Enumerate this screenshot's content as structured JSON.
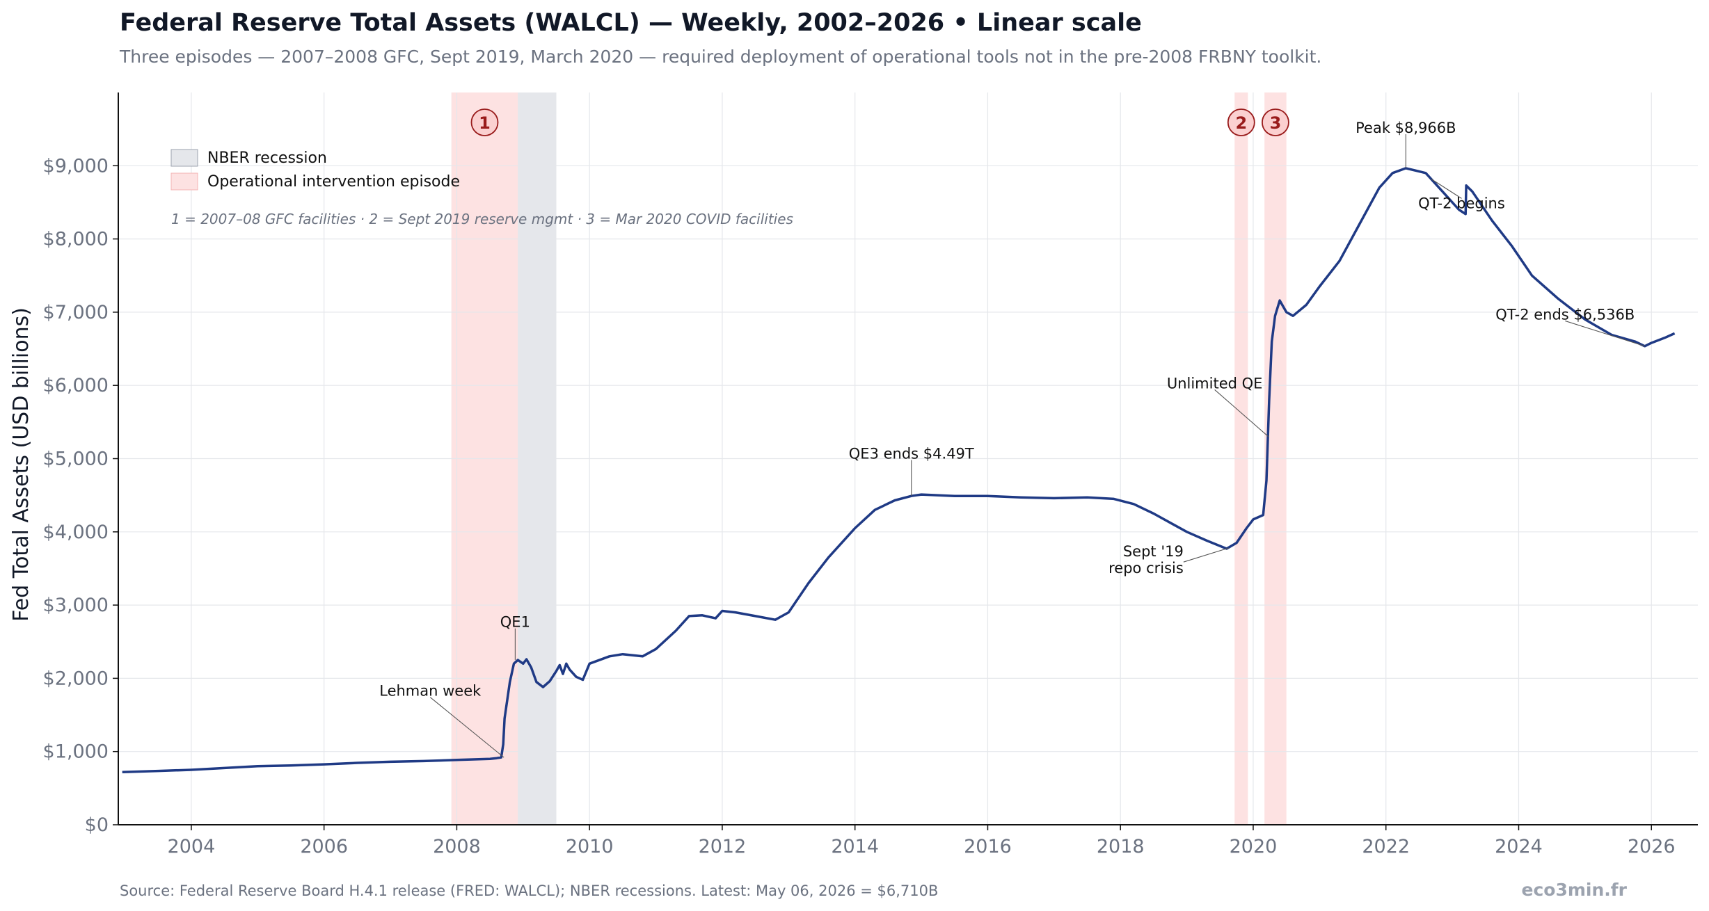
{
  "colors": {
    "line": "#1f3a85",
    "recession": "#e5e7eb",
    "episode": "#fde2e2",
    "badge_stroke": "#991b1b",
    "grid": "#e5e7eb"
  },
  "title": "Federal Reserve Total Assets (WALCL) — Weekly, 2002–2026  •  Linear scale",
  "subtitle": "Three episodes — 2007–2008 GFC, Sept 2019, March 2020 — required deployment of operational tools not in the pre-2008 FRBNY toolkit.",
  "footer": {
    "source": "Source: Federal Reserve Board H.4.1 release (FRED: WALCL); NBER recessions.   Latest: May 06, 2026 = $6,710B",
    "brand": "eco3min.fr"
  },
  "legend": {
    "position": "top-left",
    "items": [
      {
        "label": "NBER recession",
        "kind": "recession"
      },
      {
        "label": "Operational intervention episode",
        "kind": "episode"
      }
    ],
    "note": "1 = 2007–08 GFC facilities · 2 = Sept 2019 reserve mgmt · 3 = Mar 2020 COVID facilities"
  },
  "chart_data": {
    "type": "line",
    "title": "Federal Reserve Total Assets (WALCL) — Weekly, 2002–2026  •  Linear scale",
    "xlabel": "",
    "ylabel": "Fed Total Assets (USD billions)",
    "xlim": [
      2002.9,
      2026.7
    ],
    "ylim": [
      0,
      10000
    ],
    "scale": "linear",
    "grid": true,
    "x_ticks": [
      2004,
      2006,
      2008,
      2010,
      2012,
      2014,
      2016,
      2018,
      2020,
      2022,
      2024,
      2026
    ],
    "x_tick_labels": [
      "2004",
      "2006",
      "2008",
      "2010",
      "2012",
      "2014",
      "2016",
      "2018",
      "2020",
      "2022",
      "2024",
      "2026"
    ],
    "y_ticks": [
      0,
      1000,
      2000,
      3000,
      4000,
      5000,
      6000,
      7000,
      8000,
      9000
    ],
    "y_tick_labels": [
      "$0",
      "$1,000",
      "$2,000",
      "$3,000",
      "$4,000",
      "$5,000",
      "$6,000",
      "$7,000",
      "$8,000",
      "$9,000"
    ],
    "series": [
      {
        "points": [
          [
            2002.96,
            720
          ],
          [
            2003.5,
            735
          ],
          [
            2004.0,
            750
          ],
          [
            2004.5,
            775
          ],
          [
            2005.0,
            800
          ],
          [
            2005.5,
            810
          ],
          [
            2006.0,
            825
          ],
          [
            2006.5,
            845
          ],
          [
            2007.0,
            860
          ],
          [
            2007.5,
            870
          ],
          [
            2008.0,
            885
          ],
          [
            2008.5,
            900
          ],
          [
            2008.6,
            910
          ],
          [
            2008.67,
            920
          ],
          [
            2008.7,
            1100
          ],
          [
            2008.72,
            1450
          ],
          [
            2008.76,
            1700
          ],
          [
            2008.8,
            1950
          ],
          [
            2008.86,
            2200
          ],
          [
            2008.92,
            2250
          ],
          [
            2009.0,
            2200
          ],
          [
            2009.05,
            2260
          ],
          [
            2009.12,
            2150
          ],
          [
            2009.2,
            1950
          ],
          [
            2009.3,
            1880
          ],
          [
            2009.4,
            1960
          ],
          [
            2009.5,
            2100
          ],
          [
            2009.55,
            2180
          ],
          [
            2009.6,
            2060
          ],
          [
            2009.65,
            2200
          ],
          [
            2009.7,
            2120
          ],
          [
            2009.8,
            2020
          ],
          [
            2009.9,
            1980
          ],
          [
            2010.0,
            2200
          ],
          [
            2010.3,
            2300
          ],
          [
            2010.5,
            2330
          ],
          [
            2010.8,
            2300
          ],
          [
            2011.0,
            2400
          ],
          [
            2011.3,
            2650
          ],
          [
            2011.5,
            2850
          ],
          [
            2011.7,
            2860
          ],
          [
            2011.9,
            2820
          ],
          [
            2012.0,
            2920
          ],
          [
            2012.2,
            2900
          ],
          [
            2012.5,
            2850
          ],
          [
            2012.8,
            2800
          ],
          [
            2013.0,
            2900
          ],
          [
            2013.3,
            3300
          ],
          [
            2013.6,
            3650
          ],
          [
            2014.0,
            4050
          ],
          [
            2014.3,
            4300
          ],
          [
            2014.6,
            4430
          ],
          [
            2014.85,
            4490
          ],
          [
            2015.0,
            4510
          ],
          [
            2015.5,
            4490
          ],
          [
            2016.0,
            4490
          ],
          [
            2016.5,
            4470
          ],
          [
            2017.0,
            4460
          ],
          [
            2017.5,
            4470
          ],
          [
            2017.9,
            4450
          ],
          [
            2018.2,
            4380
          ],
          [
            2018.5,
            4250
          ],
          [
            2018.8,
            4100
          ],
          [
            2019.0,
            4000
          ],
          [
            2019.3,
            3880
          ],
          [
            2019.6,
            3770
          ],
          [
            2019.75,
            3850
          ],
          [
            2019.9,
            4050
          ],
          [
            2020.0,
            4170
          ],
          [
            2020.15,
            4230
          ],
          [
            2020.2,
            4700
          ],
          [
            2020.24,
            5800
          ],
          [
            2020.28,
            6600
          ],
          [
            2020.33,
            6950
          ],
          [
            2020.4,
            7160
          ],
          [
            2020.5,
            7000
          ],
          [
            2020.6,
            6950
          ],
          [
            2020.8,
            7100
          ],
          [
            2021.0,
            7350
          ],
          [
            2021.3,
            7700
          ],
          [
            2021.6,
            8200
          ],
          [
            2021.9,
            8700
          ],
          [
            2022.1,
            8900
          ],
          [
            2022.3,
            8966
          ],
          [
            2022.6,
            8900
          ],
          [
            2022.9,
            8600
          ],
          [
            2023.1,
            8400
          ],
          [
            2023.2,
            8340
          ],
          [
            2023.21,
            8730
          ],
          [
            2023.3,
            8650
          ],
          [
            2023.6,
            8250
          ],
          [
            2023.9,
            7900
          ],
          [
            2024.2,
            7500
          ],
          [
            2024.6,
            7180
          ],
          [
            2025.0,
            6900
          ],
          [
            2025.4,
            6690
          ],
          [
            2025.75,
            6600
          ],
          [
            2025.9,
            6536
          ],
          [
            2026.0,
            6580
          ],
          [
            2026.2,
            6650
          ],
          [
            2026.35,
            6710
          ]
        ]
      }
    ],
    "recessions": [
      [
        2007.92,
        2009.5
      ]
    ],
    "episodes": [
      {
        "id": "1",
        "range": [
          2007.92,
          2008.92
        ]
      },
      {
        "id": "2",
        "range": [
          2019.72,
          2019.92
        ]
      },
      {
        "id": "3",
        "range": [
          2020.17,
          2020.5
        ]
      }
    ],
    "annotations": [
      {
        "lines": [
          "Lehman week"
        ],
        "x": 2008.71,
        "y": 920,
        "text_x": 2007.6,
        "text_y": 1760,
        "anchor": "middle"
      },
      {
        "lines": [
          "QE1"
        ],
        "x": 2008.88,
        "y": 2250,
        "text_x": 2008.88,
        "text_y": 2700,
        "anchor": "middle"
      },
      {
        "lines": [
          "QE3 ends $4.49T"
        ],
        "x": 2014.85,
        "y": 4490,
        "text_x": 2014.85,
        "text_y": 5000,
        "anchor": "middle"
      },
      {
        "lines": [
          "Sept '19",
          "repo crisis"
        ],
        "x": 2019.63,
        "y": 3780,
        "text_x": 2018.95,
        "text_y": 3550,
        "anchor": "end"
      },
      {
        "lines": [
          "Unlimited QE"
        ],
        "x": 2020.23,
        "y": 5300,
        "text_x": 2019.42,
        "text_y": 5960,
        "anchor": "middle"
      },
      {
        "lines": [
          "Peak $8,966B"
        ],
        "x": 2022.3,
        "y": 8966,
        "text_x": 2022.3,
        "text_y": 9450,
        "anchor": "middle"
      },
      {
        "lines": [
          "QT-2 begins"
        ],
        "x": 2022.68,
        "y": 8820,
        "text_x": 2023.14,
        "text_y": 8420,
        "anchor": "middle"
      },
      {
        "lines": [
          "QT-2 ends $6,536B"
        ],
        "x": 2025.9,
        "y": 6536,
        "text_x": 2024.7,
        "text_y": 6900,
        "anchor": "middle"
      }
    ]
  }
}
